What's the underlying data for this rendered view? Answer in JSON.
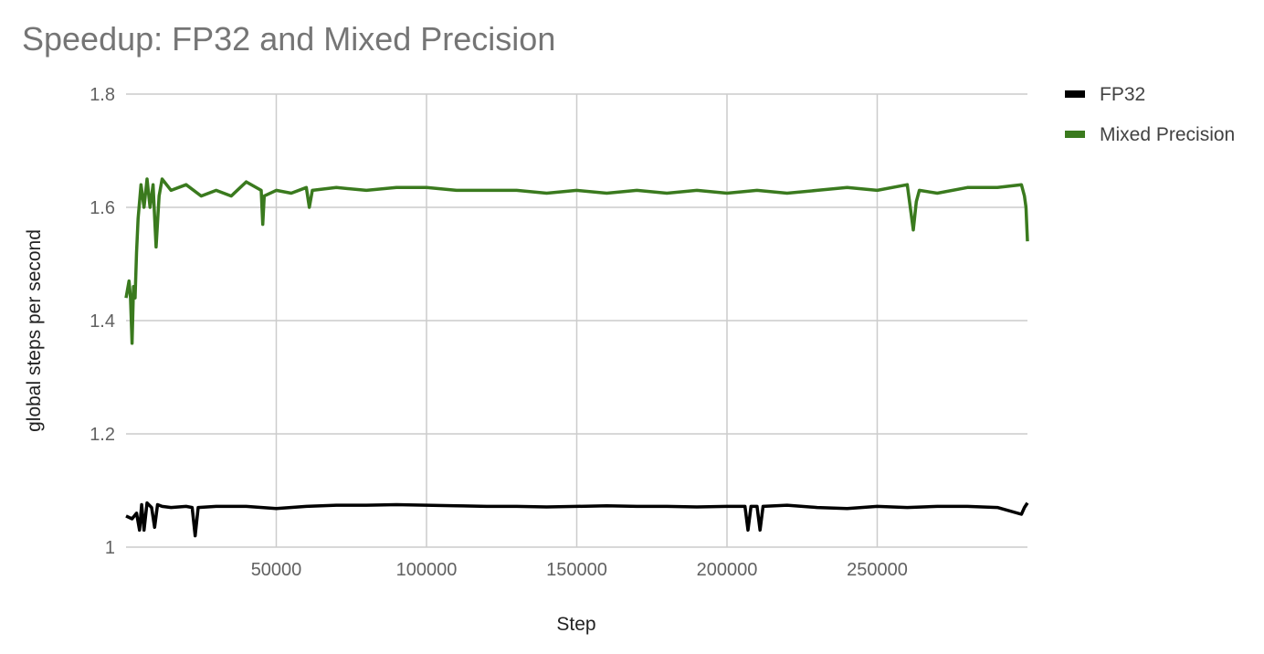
{
  "chart_data": {
    "type": "line",
    "title": "Speedup: FP32 and Mixed Precision",
    "xlabel": "Step",
    "ylabel": "global steps per second",
    "xlim": [
      0,
      300000
    ],
    "ylim": [
      1.0,
      1.8
    ],
    "x_ticks": [
      50000,
      100000,
      150000,
      200000,
      250000
    ],
    "x_tick_labels": [
      "50000",
      "100000",
      "150000",
      "200000",
      "250000"
    ],
    "y_ticks": [
      1.0,
      1.2,
      1.4,
      1.6,
      1.8
    ],
    "y_tick_labels": [
      "1",
      "1.2",
      "1.4",
      "1.6",
      "1.8"
    ],
    "grid": true,
    "legend_position": "right",
    "series": [
      {
        "name": "FP32",
        "color": "#000000",
        "x": [
          0,
          2000,
          3500,
          4500,
          5200,
          6000,
          7000,
          8500,
          9500,
          10500,
          12000,
          15000,
          20000,
          22000,
          23000,
          24000,
          30000,
          40000,
          50000,
          60000,
          70000,
          80000,
          90000,
          100000,
          110000,
          120000,
          130000,
          140000,
          150000,
          160000,
          170000,
          180000,
          190000,
          200000,
          206000,
          207000,
          208000,
          210000,
          211000,
          212000,
          220000,
          230000,
          240000,
          250000,
          260000,
          270000,
          280000,
          290000,
          298000,
          299000,
          300000
        ],
        "y": [
          1.055,
          1.05,
          1.06,
          1.03,
          1.075,
          1.03,
          1.078,
          1.07,
          1.035,
          1.075,
          1.072,
          1.07,
          1.072,
          1.07,
          1.02,
          1.07,
          1.072,
          1.072,
          1.068,
          1.072,
          1.074,
          1.074,
          1.075,
          1.074,
          1.073,
          1.072,
          1.072,
          1.071,
          1.072,
          1.073,
          1.072,
          1.072,
          1.071,
          1.072,
          1.072,
          1.03,
          1.072,
          1.072,
          1.03,
          1.072,
          1.074,
          1.07,
          1.068,
          1.072,
          1.07,
          1.072,
          1.072,
          1.07,
          1.058,
          1.07,
          1.078
        ]
      },
      {
        "name": "Mixed Precision",
        "color": "#3a7a1e",
        "x": [
          0,
          1000,
          1500,
          2000,
          2500,
          3000,
          3500,
          4000,
          5000,
          6000,
          7000,
          8000,
          9000,
          10000,
          11000,
          12000,
          15000,
          20000,
          25000,
          30000,
          35000,
          40000,
          45000,
          45500,
          46000,
          50000,
          55000,
          60000,
          61000,
          62000,
          70000,
          80000,
          90000,
          100000,
          110000,
          120000,
          130000,
          140000,
          150000,
          160000,
          170000,
          180000,
          190000,
          200000,
          210000,
          220000,
          230000,
          240000,
          250000,
          260000,
          262000,
          263000,
          264000,
          270000,
          280000,
          290000,
          298000,
          299000,
          299500,
          300000
        ],
        "y": [
          1.44,
          1.47,
          1.44,
          1.36,
          1.46,
          1.44,
          1.52,
          1.58,
          1.64,
          1.6,
          1.65,
          1.6,
          1.64,
          1.53,
          1.62,
          1.65,
          1.63,
          1.64,
          1.62,
          1.63,
          1.62,
          1.645,
          1.63,
          1.57,
          1.62,
          1.63,
          1.625,
          1.635,
          1.6,
          1.63,
          1.635,
          1.63,
          1.635,
          1.635,
          1.63,
          1.63,
          1.63,
          1.625,
          1.63,
          1.625,
          1.63,
          1.625,
          1.63,
          1.625,
          1.63,
          1.625,
          1.63,
          1.635,
          1.63,
          1.64,
          1.56,
          1.61,
          1.63,
          1.625,
          1.635,
          1.635,
          1.64,
          1.62,
          1.6,
          1.54
        ]
      }
    ]
  }
}
